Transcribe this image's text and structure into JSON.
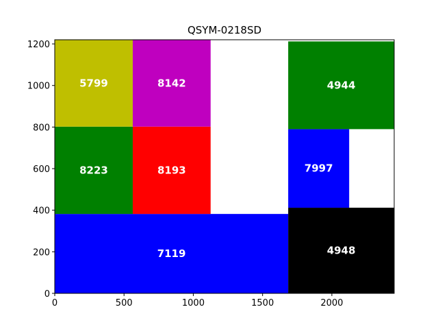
{
  "chart_data": {
    "type": "treemap",
    "title": "QSYM-0218SD",
    "xlabel": "",
    "ylabel": "",
    "xlim": [
      0,
      2450
    ],
    "ylim": [
      0,
      1220
    ],
    "xticks": [
      0,
      500,
      1000,
      1500,
      2000
    ],
    "yticks": [
      0,
      200,
      400,
      600,
      800,
      1000,
      1200
    ],
    "grid": false,
    "legend": "none",
    "rects": [
      {
        "label": "7119",
        "x0": 0,
        "x1": 1685,
        "y0": 0,
        "y1": 382,
        "color": "#0000ff"
      },
      {
        "label": "8223",
        "x0": 0,
        "x1": 563,
        "y0": 382,
        "y1": 802,
        "color": "#008000"
      },
      {
        "label": "8193",
        "x0": 563,
        "x1": 1125,
        "y0": 382,
        "y1": 802,
        "color": "#ff0000"
      },
      {
        "label": "5799",
        "x0": 0,
        "x1": 563,
        "y0": 802,
        "y1": 1220,
        "color": "#bfbf00"
      },
      {
        "label": "8142",
        "x0": 563,
        "x1": 1125,
        "y0": 802,
        "y1": 1220,
        "color": "#bf00bf"
      },
      {
        "label": "4948",
        "x0": 1685,
        "x1": 2450,
        "y0": 0,
        "y1": 412,
        "color": "#000000"
      },
      {
        "label": "7997",
        "x0": 1685,
        "x1": 2125,
        "y0": 412,
        "y1": 790,
        "color": "#0000ff"
      },
      {
        "label": "4944",
        "x0": 1685,
        "x1": 2450,
        "y0": 790,
        "y1": 1212,
        "color": "#008000"
      }
    ]
  }
}
